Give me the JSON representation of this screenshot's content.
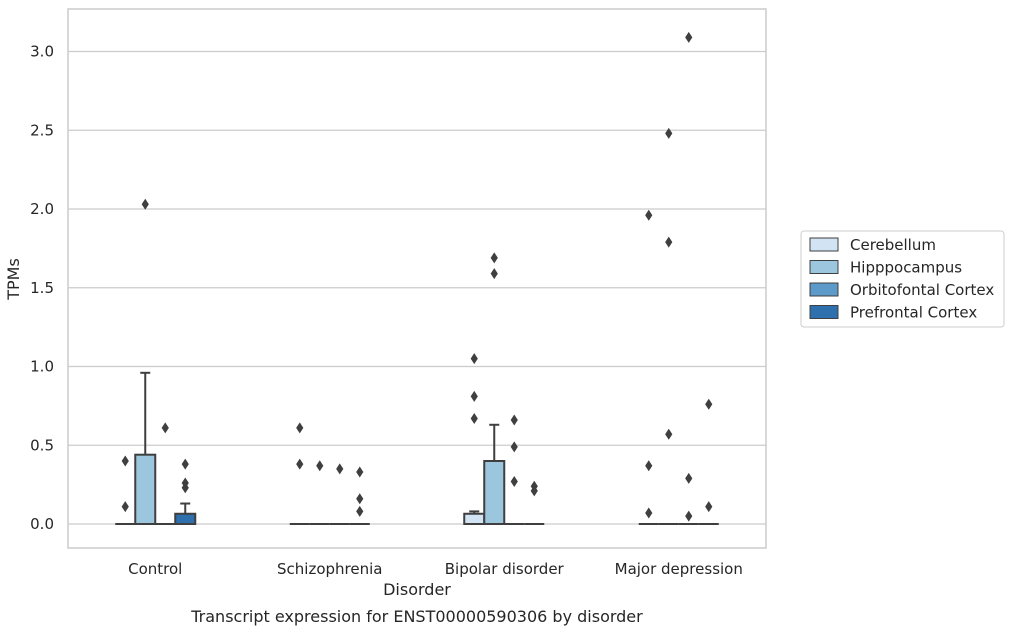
{
  "chart_data": {
    "type": "box",
    "title": "",
    "caption": "Transcript expression for ENST00000590306 by disorder",
    "xlabel": "Disorder",
    "ylabel": "TPMs",
    "ylim": [
      -0.15,
      3.25
    ],
    "yticks": [
      0.0,
      0.5,
      1.0,
      1.5,
      2.0,
      2.5,
      3.0
    ],
    "ytick_labels": [
      "0.0",
      "0.5",
      "1.0",
      "1.5",
      "2.0",
      "2.5",
      "3.0"
    ],
    "grid": "horizontal",
    "legend_position": "right",
    "categories": [
      "Control",
      "Schizophrenia",
      "Bipolar disorder",
      "Major depression"
    ],
    "series": [
      {
        "name": "Cerebellum",
        "color": "#d2e3f3",
        "boxes": [
          {
            "q1": 0,
            "median": 0,
            "q3": 0,
            "whisker_low": 0,
            "whisker_high": 0,
            "outliers": [
              0.4,
              0.11
            ]
          },
          {
            "q1": 0,
            "median": 0,
            "q3": 0,
            "whisker_low": 0,
            "whisker_high": 0,
            "outliers": [
              0.61,
              0.38
            ]
          },
          {
            "q1": 0,
            "median": 0,
            "q3": 0.065,
            "whisker_low": 0,
            "whisker_high": 0.08,
            "outliers": [
              1.05,
              0.81,
              0.67
            ]
          },
          {
            "q1": 0,
            "median": 0,
            "q3": 0,
            "whisker_low": 0,
            "whisker_high": 0,
            "outliers": [
              1.96,
              0.37,
              0.07
            ]
          }
        ]
      },
      {
        "name": "Hipppocampus",
        "color": "#9cc6de",
        "boxes": [
          {
            "q1": 0,
            "median": 0,
            "q3": 0.44,
            "whisker_low": 0,
            "whisker_high": 0.96,
            "outliers": [
              2.03
            ]
          },
          {
            "q1": 0,
            "median": 0,
            "q3": 0,
            "whisker_low": 0,
            "whisker_high": 0,
            "outliers": [
              0.37
            ]
          },
          {
            "q1": 0,
            "median": 0,
            "q3": 0.4,
            "whisker_low": 0,
            "whisker_high": 0.63,
            "outliers": [
              1.69,
              1.59
            ]
          },
          {
            "q1": 0,
            "median": 0,
            "q3": 0,
            "whisker_low": 0,
            "whisker_high": 0,
            "outliers": [
              2.48,
              1.79,
              0.57
            ]
          }
        ]
      },
      {
        "name": "Orbitofontal Cortex",
        "color": "#5b9ac9",
        "boxes": [
          {
            "q1": 0,
            "median": 0,
            "q3": 0,
            "whisker_low": 0,
            "whisker_high": 0,
            "outliers": [
              0.61
            ]
          },
          {
            "q1": 0,
            "median": 0,
            "q3": 0,
            "whisker_low": 0,
            "whisker_high": 0,
            "outliers": [
              0.35
            ]
          },
          {
            "q1": 0,
            "median": 0,
            "q3": 0,
            "whisker_low": 0,
            "whisker_high": 0,
            "outliers": [
              0.66,
              0.49,
              0.27
            ]
          },
          {
            "q1": 0,
            "median": 0,
            "q3": 0,
            "whisker_low": 0,
            "whisker_high": 0,
            "outliers": [
              3.09,
              0.29,
              0.05
            ]
          }
        ]
      },
      {
        "name": "Prefrontal Cortex",
        "color": "#2e6fae",
        "boxes": [
          {
            "q1": 0,
            "median": 0,
            "q3": 0.065,
            "whisker_low": 0,
            "whisker_high": 0.13,
            "outliers": [
              0.38,
              0.26,
              0.23
            ]
          },
          {
            "q1": 0,
            "median": 0,
            "q3": 0,
            "whisker_low": 0,
            "whisker_high": 0,
            "outliers": [
              0.33,
              0.16,
              0.08
            ]
          },
          {
            "q1": 0,
            "median": 0,
            "q3": 0,
            "whisker_low": 0,
            "whisker_high": 0,
            "outliers": [
              0.24,
              0.21
            ]
          },
          {
            "q1": 0,
            "median": 0,
            "q3": 0,
            "whisker_low": 0,
            "whisker_high": 0,
            "outliers": [
              0.76,
              0.11
            ]
          }
        ]
      }
    ]
  }
}
